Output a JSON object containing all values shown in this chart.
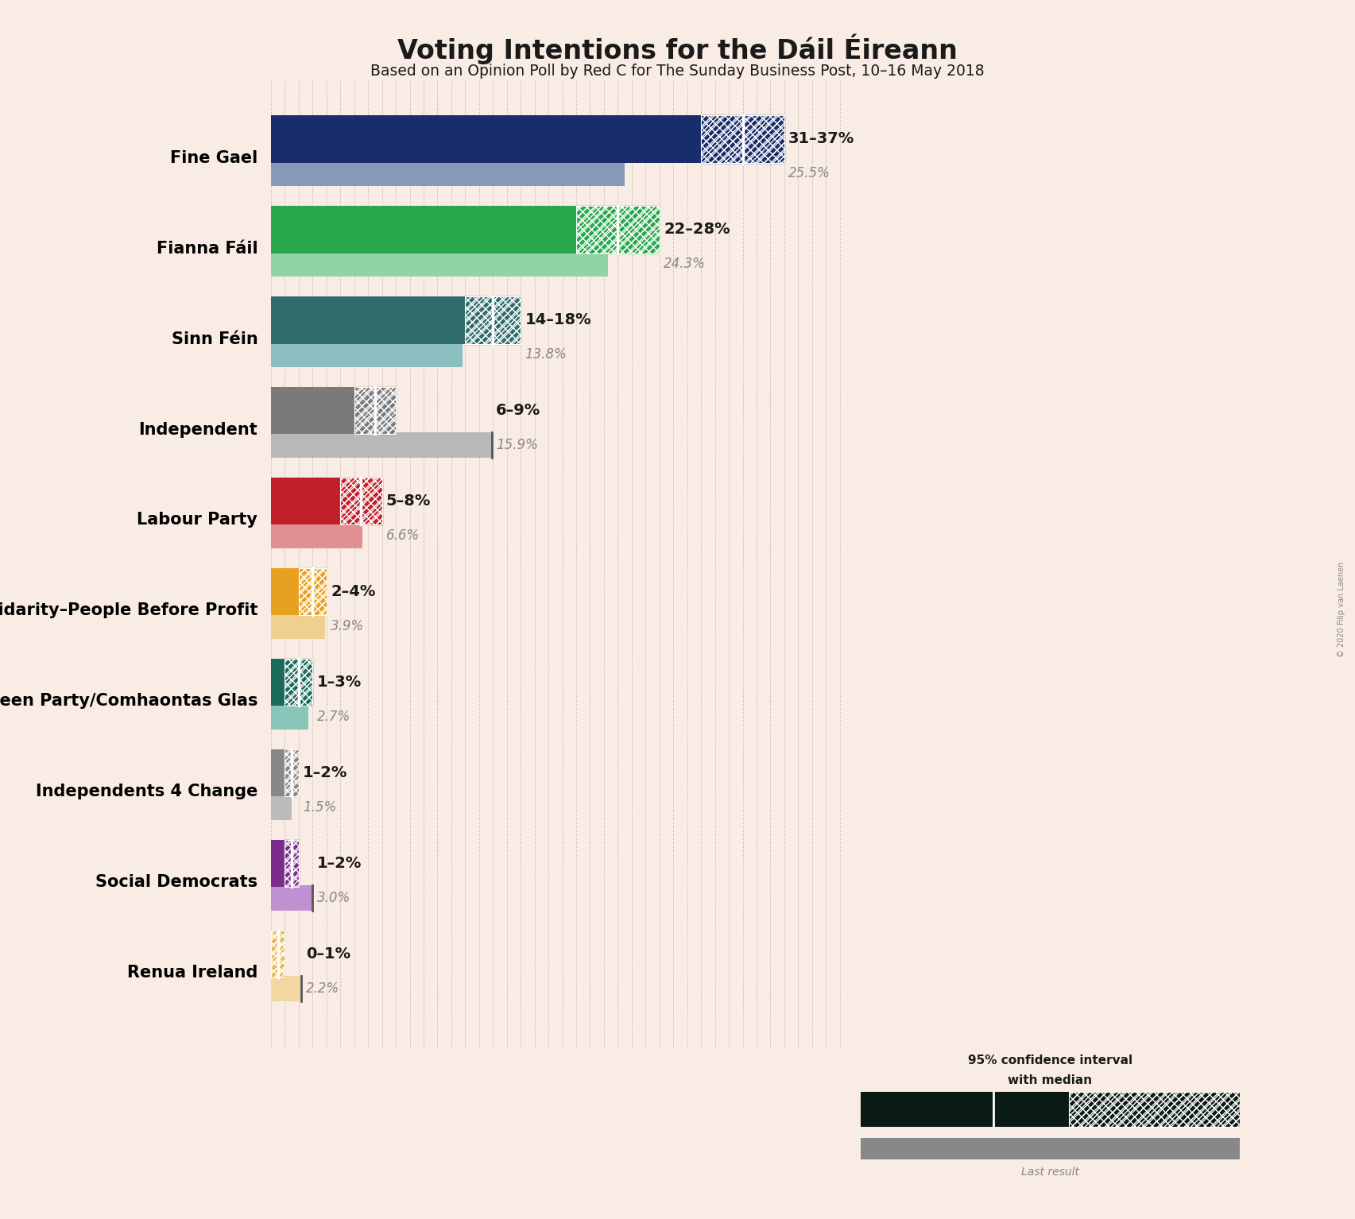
{
  "title": "Voting Intentions for the Dáil Éireann",
  "subtitle": "Based on an Opinion Poll by Red C for The Sunday Business Post, 10–16 May 2018",
  "copyright": "© 2020 Filip van Laenen",
  "background_color": "#f9ece4",
  "parties": [
    {
      "name": "Fine Gael",
      "ci_low": 31,
      "ci_mid": 34,
      "ci_high": 37,
      "last_result": 25.5,
      "color": "#1a2d6b",
      "last_color": "#8899bb"
    },
    {
      "name": "Fianna Fáil",
      "ci_low": 22,
      "ci_mid": 25,
      "ci_high": 28,
      "last_result": 24.3,
      "color": "#27a84a",
      "last_color": "#90d4a4"
    },
    {
      "name": "Sinn Féin",
      "ci_low": 14,
      "ci_mid": 16,
      "ci_high": 18,
      "last_result": 13.8,
      "color": "#2e6b6b",
      "last_color": "#8bbebe"
    },
    {
      "name": "Independent",
      "ci_low": 6,
      "ci_mid": 7.5,
      "ci_high": 9,
      "last_result": 15.9,
      "color": "#7a7a7a",
      "last_color": "#b8b8b8"
    },
    {
      "name": "Labour Party",
      "ci_low": 5,
      "ci_mid": 6.5,
      "ci_high": 8,
      "last_result": 6.6,
      "color": "#c0202a",
      "last_color": "#e09090"
    },
    {
      "name": "Solidarity–People Before Profit",
      "ci_low": 2,
      "ci_mid": 3,
      "ci_high": 4,
      "last_result": 3.9,
      "color": "#e8a020",
      "last_color": "#f0d090"
    },
    {
      "name": "Green Party/Comhaontas Glas",
      "ci_low": 1,
      "ci_mid": 2,
      "ci_high": 3,
      "last_result": 2.7,
      "color": "#1a6b5a",
      "last_color": "#88c4b8"
    },
    {
      "name": "Independents 4 Change",
      "ci_low": 1,
      "ci_mid": 1.5,
      "ci_high": 2,
      "last_result": 1.5,
      "color": "#888888",
      "last_color": "#bbbbbb"
    },
    {
      "name": "Social Democrats",
      "ci_low": 1,
      "ci_mid": 1.5,
      "ci_high": 2,
      "last_result": 3.0,
      "color": "#7b2d8b",
      "last_color": "#c090d0"
    },
    {
      "name": "Renua Ireland",
      "ci_low": 0,
      "ci_mid": 0.5,
      "ci_high": 1,
      "last_result": 2.2,
      "color": "#e8b850",
      "last_color": "#f0d8a0"
    }
  ],
  "xlim": [
    0,
    42
  ],
  "label_texts": [
    "31–37%\n25.5%",
    "22–28%\n24.3%",
    "14–18%\n13.8%",
    "6–9%\n15.9%",
    "5–8%\n6.6%",
    "2–4%\n3.9%",
    "1–3%\n2.7%",
    "1–2%\n1.5%",
    "1–2%\n3.0%",
    "0–1%\n2.2%"
  ]
}
